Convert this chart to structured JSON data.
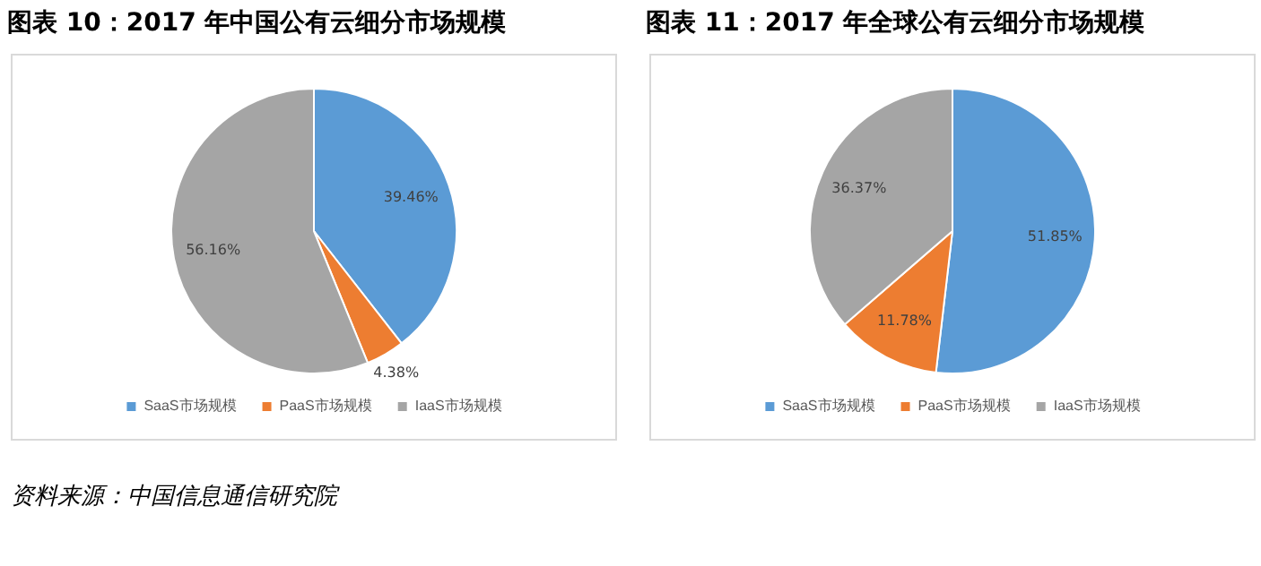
{
  "chart_data": [
    {
      "type": "pie",
      "title": "图表 10：2017 年中国公有云细分市场规模",
      "categories": [
        "SaaS市场规模",
        "PaaS市场规模",
        "IaaS市场规模"
      ],
      "values": [
        39.46,
        4.38,
        56.16
      ],
      "value_labels": [
        "39.46%",
        "4.38%",
        "56.16%"
      ],
      "colors": [
        "#5b9bd5",
        "#ed7d31",
        "#a5a5a5"
      ],
      "legend": "bottom",
      "annotations": [
        "资料来源：中国信息通信研究院"
      ]
    },
    {
      "type": "pie",
      "title": "图表 11：2017 年全球公有云细分市场规模",
      "categories": [
        "SaaS市场规模",
        "PaaS市场规模",
        "IaaS市场规模"
      ],
      "values": [
        51.85,
        11.78,
        36.37
      ],
      "value_labels": [
        "51.85%",
        "11.78%",
        "36.37%"
      ],
      "colors": [
        "#5b9bd5",
        "#ed7d31",
        "#a5a5a5"
      ],
      "legend": "bottom"
    }
  ]
}
